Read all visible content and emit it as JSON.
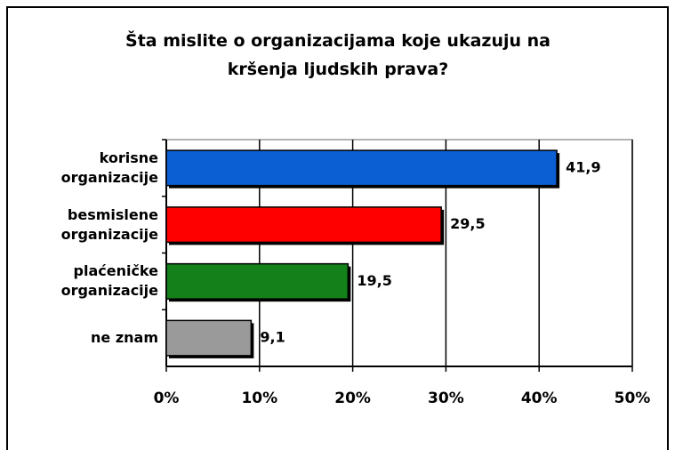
{
  "chart_data": {
    "type": "bar",
    "orientation": "horizontal",
    "title": "Šta mislite o organizacijama koje ukazuju na kršenja ljudskih prava?",
    "categories": [
      "korisne organizacije",
      "besmislene organizacije",
      "plaćeničke organizacije",
      "ne znam"
    ],
    "values": [
      41.9,
      29.5,
      19.5,
      9.1
    ],
    "value_labels": [
      "41,9",
      "29,5",
      "19,5",
      "9,1"
    ],
    "colors": [
      "#0b5fd3",
      "#ff0000",
      "#14801a",
      "#9a9a9a"
    ],
    "xlim": [
      0,
      50
    ],
    "xticks": [
      {
        "value": 0,
        "label": "0%"
      },
      {
        "value": 10,
        "label": "10%"
      },
      {
        "value": 20,
        "label": "20%"
      },
      {
        "value": 30,
        "label": "30%"
      },
      {
        "value": 40,
        "label": "40%"
      },
      {
        "value": 50,
        "label": "50%"
      }
    ],
    "grid": true
  }
}
